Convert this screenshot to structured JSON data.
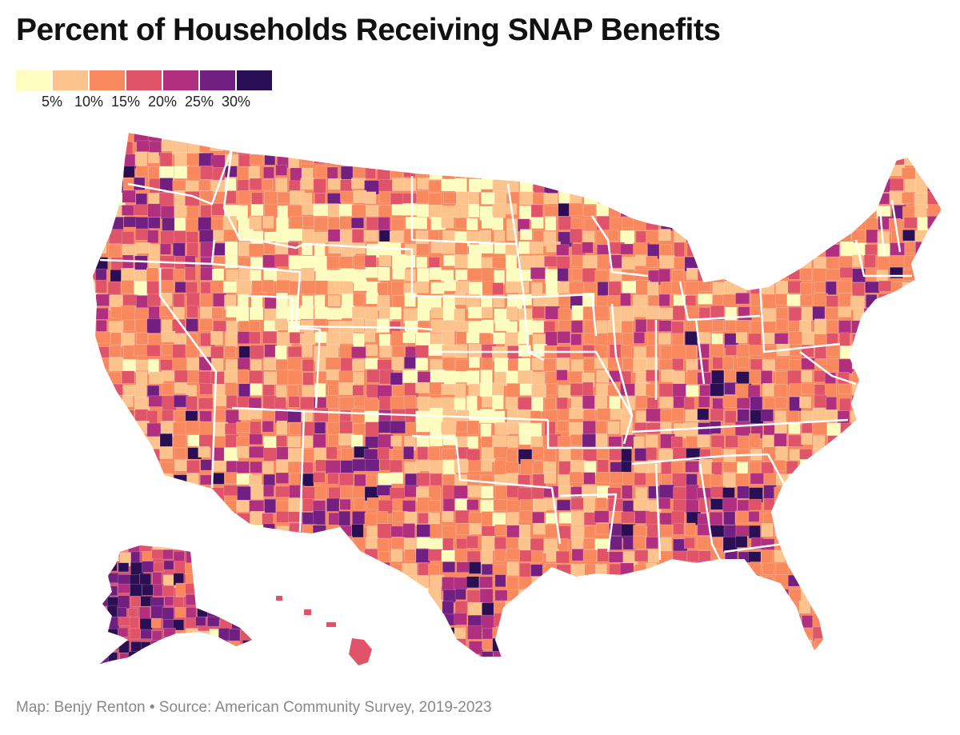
{
  "title": "Percent of Households Receiving SNAP Benefits",
  "legend": {
    "ticks": [
      "5%",
      "10%",
      "15%",
      "20%",
      "25%",
      "30%"
    ],
    "bins": [
      {
        "max_percent": 5,
        "color": "#fcfdbf"
      },
      {
        "max_percent": 10,
        "color": "#fdc38c"
      },
      {
        "max_percent": 15,
        "color": "#f8895f"
      },
      {
        "max_percent": 20,
        "color": "#e0546a"
      },
      {
        "max_percent": 25,
        "color": "#b02f7f"
      },
      {
        "max_percent": 30,
        "color": "#711f81"
      },
      {
        "max_percent": null,
        "color": "#2b0f54"
      }
    ]
  },
  "map": {
    "subject": "Percent of households receiving SNAP benefits by US county",
    "regions": [
      "Contiguous United States",
      "Alaska",
      "Hawaii"
    ]
  },
  "credit": "Map: Benjy Renton • Source: American Community Survey, 2019-2023"
}
